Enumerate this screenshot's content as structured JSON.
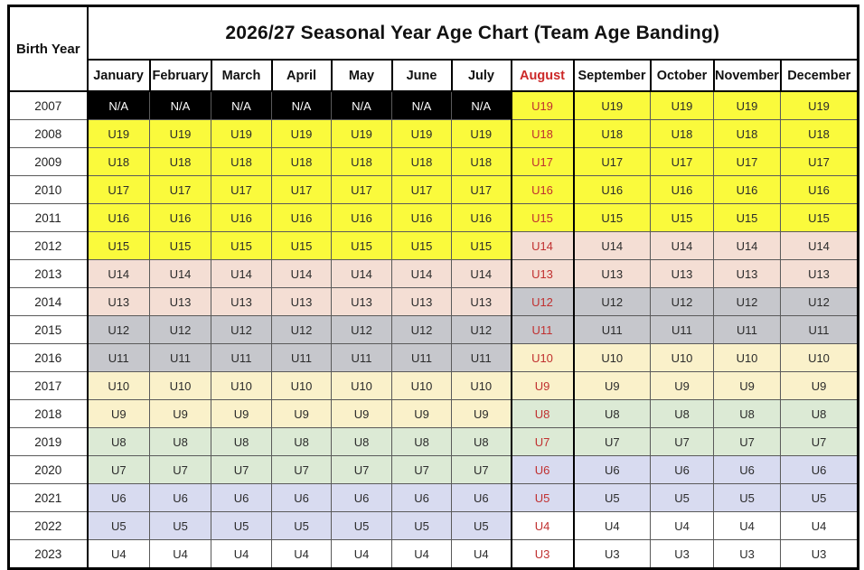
{
  "chart_data": {
    "type": "table",
    "title": "2026/27 Seasonal Year Age Chart (Team Age Banding)",
    "corner_label": "Birth Year",
    "months": [
      "January",
      "February",
      "March",
      "April",
      "May",
      "June",
      "July",
      "August",
      "September",
      "October",
      "November",
      "December"
    ],
    "highlight_month": "August",
    "highlight_month_index": 7,
    "season_split_note_columns": {
      "jan_jul": "months index 0-6",
      "aug_dec": "months index 7-11"
    },
    "rows": [
      {
        "year": "2007",
        "jan_jul": "N/A",
        "aug_dec": "U19"
      },
      {
        "year": "2008",
        "jan_jul": "U19",
        "aug_dec": "U18"
      },
      {
        "year": "2009",
        "jan_jul": "U18",
        "aug_dec": "U17"
      },
      {
        "year": "2010",
        "jan_jul": "U17",
        "aug_dec": "U16"
      },
      {
        "year": "2011",
        "jan_jul": "U16",
        "aug_dec": "U15"
      },
      {
        "year": "2012",
        "jan_jul": "U15",
        "aug_dec": "U14"
      },
      {
        "year": "2013",
        "jan_jul": "U14",
        "aug_dec": "U13"
      },
      {
        "year": "2014",
        "jan_jul": "U13",
        "aug_dec": "U12"
      },
      {
        "year": "2015",
        "jan_jul": "U12",
        "aug_dec": "U11"
      },
      {
        "year": "2016",
        "jan_jul": "U11",
        "aug_dec": "U10"
      },
      {
        "year": "2017",
        "jan_jul": "U10",
        "aug_dec": "U9"
      },
      {
        "year": "2018",
        "jan_jul": "U9",
        "aug_dec": "U8"
      },
      {
        "year": "2019",
        "jan_jul": "U8",
        "aug_dec": "U7"
      },
      {
        "year": "2020",
        "jan_jul": "U7",
        "aug_dec": "U6"
      },
      {
        "year": "2021",
        "jan_jul": "U6",
        "aug_dec": "U5"
      },
      {
        "year": "2022",
        "jan_jul": "U5",
        "aug_dec": "U4"
      },
      {
        "year": "2023",
        "jan_jul": "U4",
        "aug_dec": "U3"
      }
    ],
    "band_colors": {
      "N/A": {
        "bg": "#000000",
        "fg": "#ffffff"
      },
      "U19": {
        "bg": "#fafa3c"
      },
      "U18": {
        "bg": "#fafa3c"
      },
      "U17": {
        "bg": "#fafa3c"
      },
      "U16": {
        "bg": "#fafa3c"
      },
      "U15": {
        "bg": "#fafa3c"
      },
      "U14": {
        "bg": "#f4ded4"
      },
      "U13": {
        "bg": "#f4ded4"
      },
      "U12": {
        "bg": "#c6c7cc"
      },
      "U11": {
        "bg": "#c6c7cc"
      },
      "U10": {
        "bg": "#faf1ca"
      },
      "U9": {
        "bg": "#faf1ca"
      },
      "U8": {
        "bg": "#dcead5"
      },
      "U7": {
        "bg": "#dcead5"
      },
      "U6": {
        "bg": "#d8dbf0"
      },
      "U5": {
        "bg": "#d8dbf0"
      },
      "U4": {
        "bg": "#ffffff"
      },
      "U3": {
        "bg": "#ffffff"
      }
    },
    "colors": {
      "august_header_text": "#cc2828",
      "august_cell_text": "#c03030",
      "cell_text": "#2b2b2b",
      "header_text": "#111111",
      "grid_line": "#5a5a5a",
      "outer_border": "#000000"
    }
  }
}
